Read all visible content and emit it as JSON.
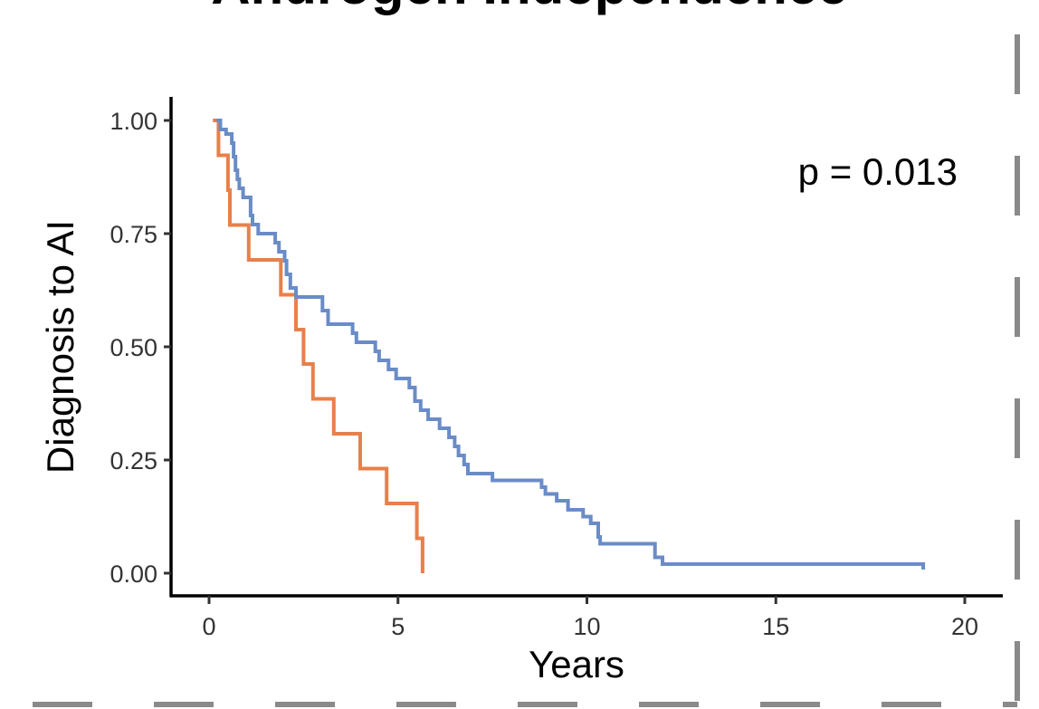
{
  "chart_data": {
    "type": "line",
    "title": "Androgen Independence",
    "xlabel": "Years",
    "ylabel": "Diagnosis to AI",
    "xlim": [
      0,
      21
    ],
    "ylim": [
      0,
      1
    ],
    "x_ticks": [
      "0",
      "5",
      "10",
      "15",
      "20"
    ],
    "x_tick_values": [
      0,
      5,
      10,
      15,
      20
    ],
    "y_ticks": [
      "0.00",
      "0.25",
      "0.50",
      "0.75",
      "1.00"
    ],
    "y_tick_values": [
      0,
      0.25,
      0.5,
      0.75,
      1.0
    ],
    "annotation": "p = 0.013",
    "grid": false,
    "legend": "none",
    "series": [
      {
        "color": "#E8804A",
        "points": [
          [
            0.1,
            1.0
          ],
          [
            0.25,
            1.0
          ],
          [
            0.25,
            0.923
          ],
          [
            0.5,
            0.923
          ],
          [
            0.5,
            0.846
          ],
          [
            0.55,
            0.846
          ],
          [
            0.55,
            0.769
          ],
          [
            1.05,
            0.769
          ],
          [
            1.05,
            0.692
          ],
          [
            1.9,
            0.692
          ],
          [
            1.9,
            0.615
          ],
          [
            2.3,
            0.615
          ],
          [
            2.3,
            0.538
          ],
          [
            2.5,
            0.538
          ],
          [
            2.5,
            0.462
          ],
          [
            2.75,
            0.462
          ],
          [
            2.75,
            0.385
          ],
          [
            3.3,
            0.385
          ],
          [
            3.3,
            0.308
          ],
          [
            4.0,
            0.308
          ],
          [
            4.0,
            0.231
          ],
          [
            4.7,
            0.231
          ],
          [
            4.7,
            0.154
          ],
          [
            5.5,
            0.154
          ],
          [
            5.5,
            0.077
          ],
          [
            5.65,
            0.077
          ],
          [
            5.65,
            0.0
          ]
        ]
      },
      {
        "color": "#6A8CC7",
        "points": [
          [
            0.2,
            1.0
          ],
          [
            0.3,
            1.0
          ],
          [
            0.3,
            0.98
          ],
          [
            0.45,
            0.98
          ],
          [
            0.45,
            0.97
          ],
          [
            0.6,
            0.97
          ],
          [
            0.6,
            0.95
          ],
          [
            0.65,
            0.95
          ],
          [
            0.65,
            0.92
          ],
          [
            0.7,
            0.92
          ],
          [
            0.7,
            0.89
          ],
          [
            0.75,
            0.89
          ],
          [
            0.75,
            0.87
          ],
          [
            0.8,
            0.87
          ],
          [
            0.8,
            0.85
          ],
          [
            0.9,
            0.85
          ],
          [
            0.9,
            0.83
          ],
          [
            1.1,
            0.83
          ],
          [
            1.1,
            0.79
          ],
          [
            1.15,
            0.79
          ],
          [
            1.15,
            0.77
          ],
          [
            1.3,
            0.77
          ],
          [
            1.3,
            0.75
          ],
          [
            1.75,
            0.75
          ],
          [
            1.75,
            0.73
          ],
          [
            1.85,
            0.73
          ],
          [
            1.85,
            0.71
          ],
          [
            2.0,
            0.71
          ],
          [
            2.0,
            0.69
          ],
          [
            2.05,
            0.69
          ],
          [
            2.05,
            0.66
          ],
          [
            2.15,
            0.66
          ],
          [
            2.15,
            0.63
          ],
          [
            2.3,
            0.63
          ],
          [
            2.3,
            0.61
          ],
          [
            3.0,
            0.61
          ],
          [
            3.0,
            0.58
          ],
          [
            3.15,
            0.58
          ],
          [
            3.15,
            0.55
          ],
          [
            3.8,
            0.55
          ],
          [
            3.8,
            0.53
          ],
          [
            3.9,
            0.53
          ],
          [
            3.9,
            0.51
          ],
          [
            4.4,
            0.51
          ],
          [
            4.4,
            0.49
          ],
          [
            4.5,
            0.49
          ],
          [
            4.5,
            0.47
          ],
          [
            4.75,
            0.47
          ],
          [
            4.75,
            0.45
          ],
          [
            4.95,
            0.45
          ],
          [
            4.95,
            0.43
          ],
          [
            5.3,
            0.43
          ],
          [
            5.3,
            0.41
          ],
          [
            5.45,
            0.41
          ],
          [
            5.45,
            0.38
          ],
          [
            5.6,
            0.38
          ],
          [
            5.6,
            0.36
          ],
          [
            5.8,
            0.36
          ],
          [
            5.8,
            0.34
          ],
          [
            6.1,
            0.34
          ],
          [
            6.1,
            0.32
          ],
          [
            6.35,
            0.32
          ],
          [
            6.35,
            0.3
          ],
          [
            6.5,
            0.3
          ],
          [
            6.5,
            0.28
          ],
          [
            6.6,
            0.28
          ],
          [
            6.6,
            0.26
          ],
          [
            6.75,
            0.26
          ],
          [
            6.75,
            0.24
          ],
          [
            6.85,
            0.24
          ],
          [
            6.85,
            0.22
          ],
          [
            7.5,
            0.22
          ],
          [
            7.5,
            0.205
          ],
          [
            8.8,
            0.205
          ],
          [
            8.8,
            0.19
          ],
          [
            8.9,
            0.19
          ],
          [
            8.9,
            0.175
          ],
          [
            9.2,
            0.175
          ],
          [
            9.2,
            0.16
          ],
          [
            9.5,
            0.16
          ],
          [
            9.5,
            0.14
          ],
          [
            9.9,
            0.14
          ],
          [
            9.9,
            0.125
          ],
          [
            10.1,
            0.125
          ],
          [
            10.1,
            0.11
          ],
          [
            10.3,
            0.11
          ],
          [
            10.3,
            0.08
          ],
          [
            10.35,
            0.08
          ],
          [
            10.35,
            0.065
          ],
          [
            11.8,
            0.065
          ],
          [
            11.8,
            0.035
          ],
          [
            12.0,
            0.035
          ],
          [
            12.0,
            0.02
          ],
          [
            18.9,
            0.02
          ],
          [
            18.9,
            0.008
          ]
        ]
      }
    ]
  }
}
